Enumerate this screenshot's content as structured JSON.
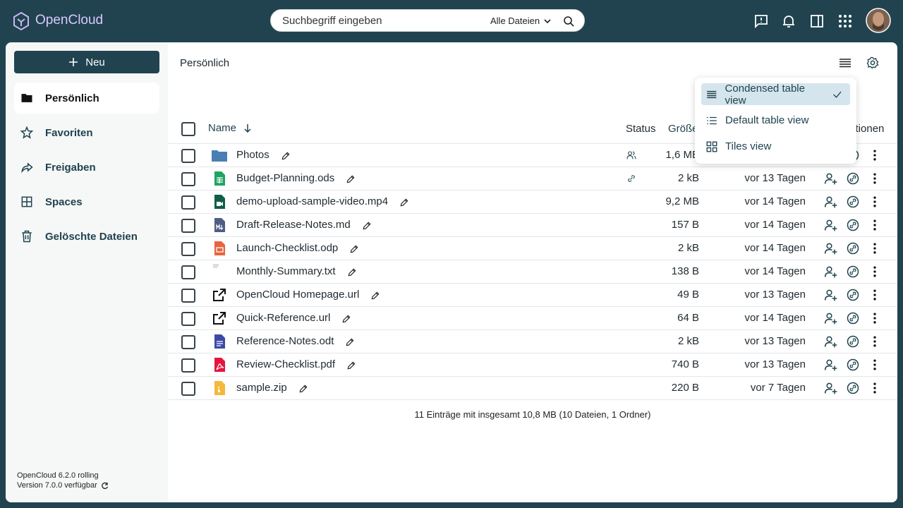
{
  "header": {
    "brand": "OpenCloud",
    "search_placeholder": "Suchbegriff eingeben",
    "search_scope": "Alle Dateien"
  },
  "sidebar": {
    "new_button": "Neu",
    "nav": [
      "Persönlich",
      "Favoriten",
      "Freigaben",
      "Spaces",
      "Gelöschte Dateien"
    ],
    "version": "OpenCloud 6.2.0 rolling",
    "update": "Version 7.0.0 verfügbar"
  },
  "breadcrumb": "Persönlich",
  "view_menu": [
    "Condensed table view",
    "Default table view",
    "Tiles view"
  ],
  "table": {
    "columns": {
      "name": "Name",
      "status": "Status",
      "size": "Größe",
      "actions": "Aktionen"
    },
    "rows": [
      {
        "name": "Photos",
        "size": "1,6 MB"
      },
      {
        "name": "Budget-Planning.ods",
        "size": "2 kB",
        "modified": "vor 13 Tagen"
      },
      {
        "name": "demo-upload-sample-video.mp4",
        "size": "9,2 MB",
        "modified": "vor 14 Tagen"
      },
      {
        "name": "Draft-Release-Notes.md",
        "size": "157 B",
        "modified": "vor 14 Tagen"
      },
      {
        "name": "Launch-Checklist.odp",
        "size": "2 kB",
        "modified": "vor 14 Tagen"
      },
      {
        "name": "Monthly-Summary.txt",
        "size": "138 B",
        "modified": "vor 14 Tagen"
      },
      {
        "name": "OpenCloud Homepage.url",
        "size": "49 B",
        "modified": "vor 13 Tagen"
      },
      {
        "name": "Quick-Reference.url",
        "size": "64 B",
        "modified": "vor 14 Tagen"
      },
      {
        "name": "Reference-Notes.odt",
        "size": "2 kB",
        "modified": "vor 13 Tagen"
      },
      {
        "name": "Review-Checklist.pdf",
        "size": "740 B",
        "modified": "vor 13 Tagen"
      },
      {
        "name": "sample.zip",
        "size": "220 B",
        "modified": "vor 7 Tagen"
      }
    ]
  },
  "footer": "11 Einträge mit insgesamt 10,8 MB (10 Dateien, 1 Ordner)"
}
